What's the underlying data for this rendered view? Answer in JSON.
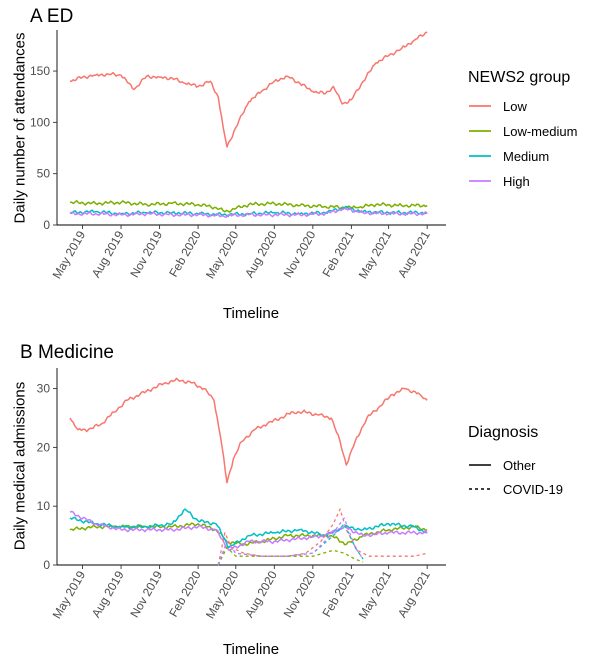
{
  "chart_data": [
    {
      "type": "line",
      "title": "A ED",
      "xlabel": "Timeline",
      "ylabel": "Daily number of attendances",
      "x_ticks": [
        "May 2019",
        "Aug 2019",
        "Nov 2019",
        "Feb 2020",
        "May 2020",
        "Aug 2020",
        "Nov 2020",
        "Feb 2021",
        "May 2021",
        "Aug 2021"
      ],
      "y_ticks": [
        0,
        50,
        100,
        150
      ],
      "ylim": [
        0,
        190
      ],
      "xlim": [
        "2019-03-01",
        "2021-09-15"
      ],
      "grid": false,
      "legend": {
        "title": "NEWS2 group",
        "position": "right"
      },
      "series": [
        {
          "name": "Low",
          "color": "#F8766D",
          "dash": "solid",
          "x": [
            "2019-04-01",
            "2019-05-01",
            "2019-06-01",
            "2019-07-01",
            "2019-08-01",
            "2019-09-01",
            "2019-10-01",
            "2019-11-01",
            "2019-12-01",
            "2020-01-01",
            "2020-02-01",
            "2020-03-01",
            "2020-03-20",
            "2020-04-01",
            "2020-04-10",
            "2020-05-01",
            "2020-06-01",
            "2020-07-01",
            "2020-08-01",
            "2020-09-01",
            "2020-10-01",
            "2020-11-01",
            "2020-12-01",
            "2020-12-20",
            "2021-01-10",
            "2021-02-01",
            "2021-03-01",
            "2021-04-01",
            "2021-05-01",
            "2021-06-01",
            "2021-07-01",
            "2021-08-01"
          ],
          "y": [
            140,
            144,
            146,
            147,
            146,
            132,
            145,
            144,
            143,
            138,
            135,
            140,
            125,
            95,
            76,
            95,
            120,
            130,
            140,
            145,
            138,
            130,
            128,
            135,
            118,
            122,
            140,
            158,
            165,
            172,
            180,
            188
          ]
        },
        {
          "name": "Low-medium",
          "color": "#7CAE00",
          "dash": "solid",
          "x": [
            "2019-04-01",
            "2019-06-01",
            "2019-08-01",
            "2019-10-01",
            "2019-12-01",
            "2020-02-01",
            "2020-03-15",
            "2020-04-05",
            "2020-05-01",
            "2020-06-01",
            "2020-08-01",
            "2020-10-01",
            "2020-12-01",
            "2021-01-15",
            "2021-02-15",
            "2021-04-01",
            "2021-06-01",
            "2021-08-01"
          ],
          "y": [
            22,
            21,
            22,
            20,
            21,
            20,
            17,
            13,
            16,
            20,
            21,
            19,
            18,
            17,
            17,
            20,
            19,
            19
          ]
        },
        {
          "name": "Medium",
          "color": "#00BFC4",
          "dash": "solid",
          "x": [
            "2019-04-01",
            "2019-06-01",
            "2019-08-01",
            "2019-10-01",
            "2019-12-01",
            "2020-02-01",
            "2020-04-01",
            "2020-06-01",
            "2020-08-01",
            "2020-10-01",
            "2020-12-01",
            "2021-01-15",
            "2021-03-01",
            "2021-05-01",
            "2021-08-01"
          ],
          "y": [
            12,
            13,
            11,
            12,
            12,
            11,
            10,
            11,
            12,
            11,
            12,
            17,
            13,
            12,
            12
          ]
        },
        {
          "name": "High",
          "color": "#C77CFF",
          "dash": "solid",
          "x": [
            "2019-04-01",
            "2019-06-01",
            "2019-08-01",
            "2019-10-01",
            "2019-12-01",
            "2020-02-01",
            "2020-04-01",
            "2020-06-01",
            "2020-08-01",
            "2020-10-01",
            "2020-12-01",
            "2021-01-15",
            "2021-03-01",
            "2021-05-01",
            "2021-08-01"
          ],
          "y": [
            11,
            11,
            10,
            11,
            10,
            10,
            9,
            10,
            10,
            10,
            11,
            16,
            12,
            11,
            11
          ]
        }
      ]
    },
    {
      "type": "line",
      "title": "B Medicine",
      "xlabel": "Timeline",
      "ylabel": "Daily medical admissions",
      "x_ticks": [
        "May 2019",
        "Aug 2019",
        "Nov 2019",
        "Feb 2020",
        "May 2020",
        "Aug 2020",
        "Nov 2020",
        "Feb 2021",
        "May 2021",
        "Aug 2021"
      ],
      "y_ticks": [
        0,
        10,
        20,
        30
      ],
      "ylim": [
        0,
        33.5
      ],
      "xlim": [
        "2019-03-01",
        "2021-09-15"
      ],
      "grid": false,
      "legend": {
        "title": "Diagnosis",
        "position": "right",
        "entries": [
          {
            "label": "Other",
            "dash": "solid"
          },
          {
            "label": "COVID-19",
            "dash": "dotted"
          }
        ]
      },
      "series": [
        {
          "group": "Low / Other",
          "color": "#F8766D",
          "dash": "solid",
          "x": [
            "2019-04-01",
            "2019-04-20",
            "2019-05-15",
            "2019-06-15",
            "2019-07-15",
            "2019-08-15",
            "2019-09-15",
            "2019-10-15",
            "2019-11-15",
            "2019-12-15",
            "2020-01-15",
            "2020-02-15",
            "2020-03-10",
            "2020-03-25",
            "2020-04-10",
            "2020-04-25",
            "2020-05-15",
            "2020-06-15",
            "2020-07-15",
            "2020-08-15",
            "2020-09-15",
            "2020-10-15",
            "2020-11-15",
            "2020-12-15",
            "2021-01-05",
            "2021-01-20",
            "2021-02-10",
            "2021-03-10",
            "2021-04-10",
            "2021-05-10",
            "2021-06-10",
            "2021-07-15",
            "2021-08-01"
          ],
          "y": [
            25,
            23,
            23,
            24,
            26,
            28,
            29,
            30,
            31,
            31.5,
            31,
            30,
            28,
            22,
            14,
            18,
            21,
            23,
            24,
            25,
            26,
            26,
            25.5,
            25,
            21,
            17,
            21,
            25,
            27,
            29,
            30,
            29,
            28
          ]
        },
        {
          "group": "Low-medium / Other",
          "color": "#7CAE00",
          "dash": "solid",
          "x": [
            "2019-04-01",
            "2019-06-01",
            "2019-08-01",
            "2019-10-01",
            "2019-12-01",
            "2020-02-01",
            "2020-03-15",
            "2020-04-10",
            "2020-05-15",
            "2020-07-01",
            "2020-09-01",
            "2020-11-01",
            "2020-12-15",
            "2021-01-20",
            "2021-03-01",
            "2021-05-01",
            "2021-07-01",
            "2021-08-01"
          ],
          "y": [
            6,
            6.5,
            6.5,
            6.5,
            6.5,
            7,
            6,
            4,
            3.5,
            4,
            5,
            5,
            5,
            3.5,
            5,
            6,
            6.5,
            6
          ]
        },
        {
          "group": "Medium / Other",
          "color": "#00BFC4",
          "dash": "solid",
          "x": [
            "2019-04-01",
            "2019-06-01",
            "2019-08-01",
            "2019-10-01",
            "2019-12-01",
            "2020-01-01",
            "2020-02-01",
            "2020-03-15",
            "2020-04-15",
            "2020-06-01",
            "2020-08-01",
            "2020-10-01",
            "2020-12-01",
            "2021-01-15",
            "2021-03-01",
            "2021-05-01",
            "2021-07-01",
            "2021-08-01"
          ],
          "y": [
            8,
            7,
            6.5,
            6.5,
            7,
            9.5,
            7.5,
            7,
            3,
            5,
            5.5,
            6,
            5,
            6.5,
            6,
            7,
            6.5,
            5.5
          ]
        },
        {
          "group": "High / Other",
          "color": "#C77CFF",
          "dash": "solid",
          "x": [
            "2019-04-01",
            "2019-06-01",
            "2019-08-01",
            "2019-10-01",
            "2019-12-01",
            "2020-02-01",
            "2020-03-15",
            "2020-04-15",
            "2020-06-01",
            "2020-08-01",
            "2020-10-01",
            "2020-12-01",
            "2021-01-15",
            "2021-03-01",
            "2021-05-01",
            "2021-08-01"
          ],
          "y": [
            9,
            7,
            6,
            6,
            6,
            6.5,
            6,
            2.5,
            4,
            4,
            4.5,
            5,
            6.5,
            5,
            5.5,
            5.5
          ]
        },
        {
          "group": "Low / COVID-19",
          "color": "#F8766D",
          "dash": "dotted",
          "x": [
            "2020-03-20",
            "2020-04-05",
            "2020-04-20",
            "2020-05-20",
            "2020-07-01",
            "2020-09-01",
            "2020-10-15",
            "2020-11-20",
            "2020-12-20",
            "2021-01-05",
            "2021-01-20",
            "2021-02-15",
            "2021-03-15",
            "2021-05-01",
            "2021-07-01",
            "2021-08-01"
          ],
          "y": [
            0,
            5.5,
            3,
            2,
            1.5,
            1.5,
            2,
            4,
            7,
            9.5,
            6,
            2.5,
            1.5,
            1.5,
            1.5,
            2
          ]
        },
        {
          "group": "Low-medium / COVID-19",
          "color": "#7CAE00",
          "dash": "dotted",
          "x": [
            "2020-03-20",
            "2020-04-10",
            "2020-05-01",
            "2020-07-01",
            "2020-09-01",
            "2020-11-01",
            "2020-12-20",
            "2021-01-15",
            "2021-02-10",
            "2021-03-01"
          ],
          "y": [
            0,
            3,
            1.5,
            1.5,
            1.5,
            1.5,
            2.5,
            2,
            1,
            0.5
          ]
        },
        {
          "group": "Medium / COVID-19",
          "color": "#00BFC4",
          "dash": "dotted",
          "x": [
            "2020-03-20",
            "2020-04-10",
            "2020-05-01",
            "2020-07-01",
            "2020-09-01",
            "2020-11-01",
            "2020-12-20",
            "2021-01-15",
            "2021-02-10",
            "2021-03-01"
          ],
          "y": [
            0,
            4,
            2,
            1.5,
            1.5,
            2,
            5,
            7,
            3,
            1
          ]
        },
        {
          "group": "High / COVID-19",
          "color": "#C77CFF",
          "dash": "dotted",
          "x": [
            "2020-03-20",
            "2020-04-10",
            "2020-05-01",
            "2020-07-01",
            "2020-09-01",
            "2020-11-01",
            "2020-12-20",
            "2021-01-15",
            "2021-02-10",
            "2021-03-01"
          ],
          "y": [
            0,
            4,
            2,
            1.5,
            1.5,
            2,
            5.5,
            8,
            3,
            1
          ]
        }
      ]
    }
  ]
}
